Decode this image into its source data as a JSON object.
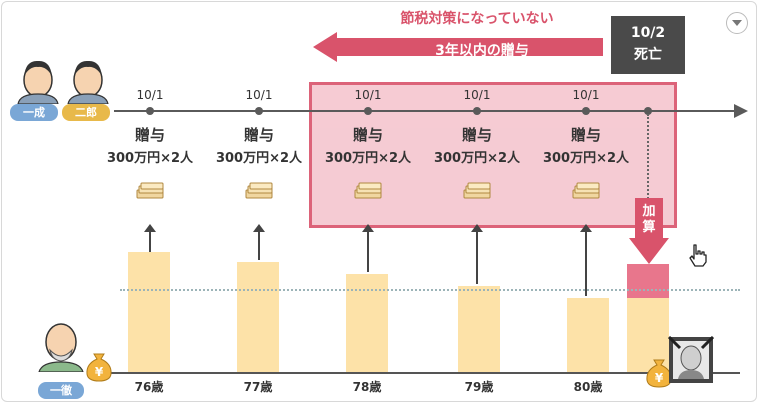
{
  "header": {
    "warning_text": "節税対策になっていない",
    "arrow_label": "3年以内の贈与",
    "death_date": "10/2",
    "death_label": "死亡"
  },
  "people": {
    "heir1": "一成",
    "heir2": "二郎",
    "grantor": "一徹"
  },
  "gifts": [
    {
      "date": "10/1",
      "title": "贈与",
      "amount": "300万円×2人",
      "age": "76歳"
    },
    {
      "date": "10/1",
      "title": "贈与",
      "amount": "300万円×2人",
      "age": "77歳"
    },
    {
      "date": "10/1",
      "title": "贈与",
      "amount": "300万円×2人",
      "age": "78歳"
    },
    {
      "date": "10/1",
      "title": "贈与",
      "amount": "300万円×2人",
      "age": "79歳"
    },
    {
      "date": "10/1",
      "title": "贈与",
      "amount": "300万円×2人",
      "age": "80歳"
    }
  ],
  "add_back_label": "加算",
  "colors": {
    "accent_red": "#d9536b",
    "box_fill": "#f5c6cf",
    "bar_fill": "#fde2a8",
    "bar_addback": "#e8768c",
    "dark": "#4a4a4a"
  },
  "icons": [
    "money-stack-icon",
    "yen-bag-icon",
    "person-icon",
    "funeral-portrait-icon",
    "hand-cursor-icon",
    "dropdown-icon"
  ]
}
